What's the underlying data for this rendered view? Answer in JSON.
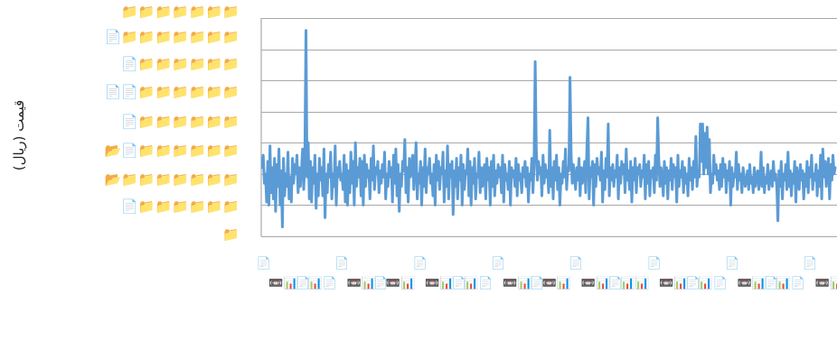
{
  "chart_data": {
    "type": "line",
    "title": "",
    "xlabel": "",
    "ylabel": "قیمت (ریال)",
    "series_color": "#5b9bd5",
    "grid": true,
    "y_ticks": [
      "📁📁📁📁📁📁📁",
      "📄📁📁📁📁📁📁📁",
      "📄📁📁📁📁📁📁",
      "📄📄📁📁📁📁📁📁",
      "📄📁📁📁📁📁📁",
      "📂📄📁📁📁📁📁📁",
      "📂📁📁📁📁📁📁📁",
      "📄📁📁📁📁📁📁",
      "📁"
    ],
    "x_ticks": [
      "📄",
      "📼📊",
      "📄",
      "📊📄",
      "📄",
      "📼📊",
      "📄",
      "📼📊",
      "📄",
      "📼📊",
      "📄",
      "📊📄",
      "📄",
      "📼📊",
      "📄",
      "📼📊",
      "📄",
      "📼📊",
      "📄",
      "📊📊",
      "📄",
      "📼📊",
      "📄",
      "📊📄",
      "📄",
      "📼📊",
      "📄",
      "📊📄",
      "📄",
      "📼📊"
    ],
    "values": [
      2.2,
      2.6,
      1.7,
      2.0,
      1.1,
      2.4,
      1.0,
      2.9,
      1.4,
      2.2,
      1.2,
      2.5,
      0.8,
      2.3,
      1.6,
      2.8,
      1.0,
      2.1,
      0.3,
      2.5,
      1.3,
      2.0,
      1.6,
      2.7,
      1.2,
      1.9,
      1.1,
      2.5,
      1.7,
      2.3,
      2.0,
      2.6,
      1.4,
      2.2,
      1.6,
      2.1,
      2.8,
      1.5,
      2.3,
      6.6,
      1.9,
      3.0,
      1.2,
      2.4,
      1.1,
      2.2,
      1.7,
      2.6,
      0.9,
      2.0,
      1.3,
      2.5,
      1.8,
      2.2,
      1.3,
      2.8,
      0.6,
      2.0,
      1.4,
      2.3,
      1.9,
      2.7,
      1.2,
      2.0,
      1.6,
      2.9,
      1.0,
      2.2,
      1.9,
      2.4,
      1.8,
      2.0,
      1.5,
      2.6,
      1.1,
      2.3,
      1.0,
      2.1,
      1.4,
      2.7,
      1.7,
      2.4,
      1.0,
      3.0,
      1.6,
      2.2,
      1.9,
      2.5,
      1.3,
      2.4,
      1.0,
      2.6,
      1.6,
      2.3,
      1.9,
      2.1,
      1.2,
      2.5,
      1.8,
      2.9,
      1.5,
      2.2,
      2.0,
      2.4,
      1.4,
      2.1,
      1.7,
      2.3,
      1.9,
      2.7,
      1.2,
      2.0,
      1.6,
      2.4,
      1.9,
      2.2,
      1.1,
      2.6,
      1.7,
      2.8,
      1.3,
      2.3,
      0.8,
      2.0,
      1.6,
      2.4,
      2.1,
      3.1,
      1.4,
      2.2,
      1.1,
      2.5,
      1.9,
      2.3,
      2.6,
      1.5,
      2.2,
      3.0,
      1.2,
      2.0,
      1.7,
      2.4,
      1.0,
      2.2,
      1.6,
      2.8,
      1.4,
      2.2,
      2.0,
      2.5,
      1.7,
      2.0,
      1.3,
      2.3,
      1.0,
      2.6,
      1.8,
      2.4,
      1.5,
      2.2,
      2.0,
      2.7,
      1.1,
      2.1,
      1.6,
      2.9,
      1.2,
      2.3,
      1.9,
      2.4,
      0.7,
      2.1,
      1.6,
      2.5,
      1.2,
      2.2,
      1.8,
      2.6,
      1.0,
      2.3,
      1.5,
      2.1,
      2.0,
      2.8,
      1.3,
      2.4,
      1.0,
      2.2,
      1.7,
      2.5,
      1.2,
      2.0,
      1.9,
      2.7,
      1.4,
      2.2,
      1.6,
      2.1,
      2.3,
      1.2,
      2.5,
      1.8,
      2.2,
      1.0,
      2.4,
      1.6,
      2.6,
      1.3,
      2.1,
      1.7,
      2.3,
      1.9,
      2.2,
      1.4,
      2.6,
      1.1,
      2.3,
      1.8,
      2.0,
      1.5,
      2.4,
      1.0,
      2.2,
      1.9,
      2.1,
      1.6,
      2.5,
      1.3,
      2.3,
      1.8,
      2.0,
      1.4,
      2.2,
      1.9,
      2.4,
      1.6,
      2.2,
      1.1,
      2.0,
      1.8,
      2.5,
      1.4,
      2.2,
      5.6,
      2.8,
      1.8,
      2.4,
      2.0,
      2.2,
      1.3,
      2.6,
      1.7,
      2.3,
      1.9,
      2.1,
      1.4,
      3.4,
      1.6,
      2.2,
      1.2,
      2.4,
      1.8,
      2.6,
      1.5,
      2.2,
      1.0,
      2.0,
      1.7,
      2.4,
      1.9,
      2.8,
      1.5,
      2.2,
      2.1,
      5.1,
      2.6,
      1.7,
      2.3,
      1.9,
      1.5,
      2.2,
      1.8,
      2.5,
      1.3,
      2.2,
      1.7,
      2.0,
      2.4,
      1.4,
      2.8,
      3.8,
      1.2,
      2.2,
      1.9,
      2.4,
      1.0,
      2.3,
      1.6,
      2.5,
      2.0,
      2.2,
      1.8,
      2.7,
      1.1,
      2.1,
      1.5,
      2.5,
      1.9,
      3.6,
      1.3,
      2.2,
      1.8,
      2.3,
      1.6,
      2.1,
      1.9,
      2.6,
      1.2,
      2.2,
      1.7,
      2.4,
      2.0,
      2.3,
      1.4,
      2.8,
      1.8,
      2.1,
      1.5,
      2.4,
      1.1,
      2.2,
      1.8,
      2.5,
      1.4,
      2.2,
      2.0,
      2.3,
      1.6,
      2.1,
      1.9,
      2.6,
      1.2,
      2.3,
      1.7,
      2.4,
      1.3,
      2.1,
      1.9,
      2.2,
      1.4,
      2.6,
      1.8,
      3.8,
      2.5,
      1.6,
      2.2,
      1.9,
      1.3,
      2.4,
      1.7,
      2.2,
      1.2,
      2.1,
      1.8,
      2.5,
      1.5,
      2.3,
      1.9,
      2.2,
      1.1,
      2.6,
      1.6,
      2.1,
      1.9,
      2.4,
      1.4,
      2.2,
      1.7,
      2.0,
      1.3,
      2.5,
      1.8,
      2.2,
      1.5,
      2.4,
      1.9,
      3.2,
      1.6,
      2.1,
      1.9,
      3.6,
      2.4,
      3.6,
      2.0,
      3.3,
      2.2,
      3.5,
      2.0,
      3.1,
      1.4,
      2.0,
      1.7,
      2.6,
      2.0,
      2.3,
      1.8,
      2.1,
      1.5,
      2.3,
      1.6,
      2.5,
      1.9,
      2.3,
      1.4,
      2.1,
      1.8,
      2.4,
      1.0,
      2.2,
      1.6,
      2.0,
      1.9,
      2.7,
      1.5,
      2.3,
      1.8,
      2.0,
      1.4,
      2.2,
      1.9,
      1.6,
      1.8,
      2.1,
      1.5,
      2.3,
      1.7,
      1.9,
      1.4,
      2.2,
      1.6,
      1.9,
      2.1,
      1.5,
      1.8,
      2.7,
      1.6,
      2.2,
      1.4,
      1.9,
      1.7,
      2.3,
      1.5,
      1.9,
      2.1,
      1.6,
      2.4,
      1.8,
      2.0,
      1.6,
      0.5,
      2.1,
      1.6,
      2.4,
      1.2,
      2.0,
      1.8,
      2.3,
      1.5,
      2.7,
      1.6,
      2.1,
      1.3,
      2.0,
      1.7,
      2.4,
      1.1,
      2.2,
      1.9,
      1.5,
      2.3,
      1.8,
      2.1,
      1.2,
      2.0,
      1.6,
      2.4,
      1.4,
      2.2,
      1.9,
      2.6,
      1.5,
      2.0,
      1.8,
      2.3,
      1.3,
      2.1,
      1.6,
      2.6,
      1.2,
      2.8,
      1.9,
      2.4,
      1.6,
      2.2,
      2.5,
      1.2,
      2.3,
      1.8,
      2.6,
      2.0,
      2.2
    ]
  }
}
